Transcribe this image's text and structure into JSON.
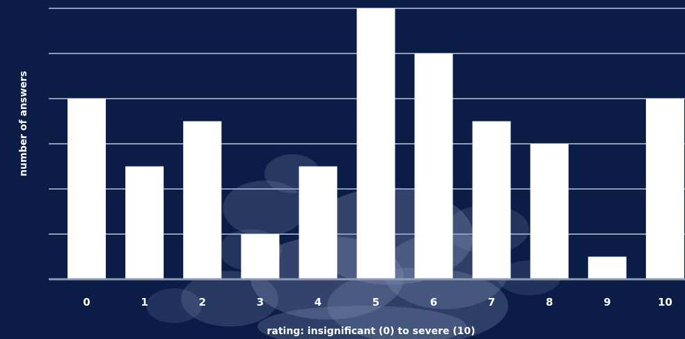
{
  "colors": {
    "background": "#0b1d46",
    "bar": "#ffffff",
    "grid": "#8e9bb8",
    "text": "#ffffff",
    "decor": "#7d8db3"
  },
  "chart_data": {
    "type": "bar",
    "xlabel": "rating: insignificant (0) to severe (10)",
    "ylabel": "number of answers",
    "categories": [
      "0",
      "1",
      "2",
      "3",
      "4",
      "5",
      "6",
      "7",
      "8",
      "9",
      "10"
    ],
    "values": [
      8,
      5,
      7,
      2,
      5,
      12,
      10,
      7,
      6,
      1,
      8
    ],
    "ylim": [
      0,
      12
    ],
    "y_tick_step": 2,
    "y_tick_labels_shown": false,
    "grid": true
  }
}
